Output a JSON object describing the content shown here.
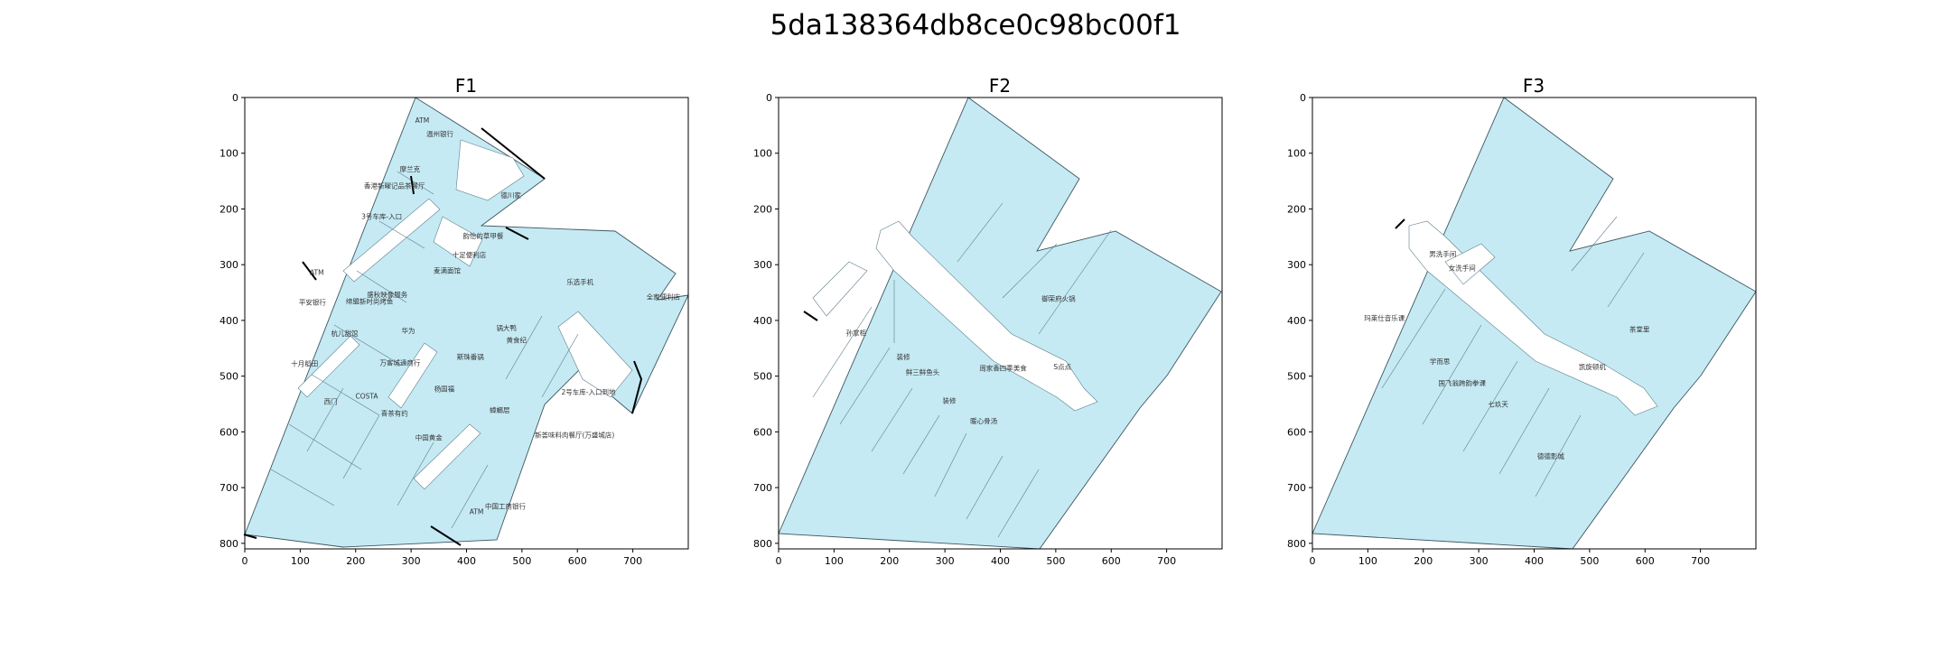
{
  "figure_title": "5da138364db8ce0c98bc00f1",
  "colors": {
    "room_fill": "#c5eaf4",
    "room_edge": "#5d7f8a",
    "corridor": "#ffffff",
    "axis": "#000000"
  },
  "axes": {
    "x_ticks": [
      0,
      100,
      200,
      300,
      400,
      500,
      600,
      700
    ],
    "y_ticks": [
      0,
      100,
      200,
      300,
      400,
      500,
      600,
      700,
      800
    ],
    "xlim": [
      0,
      800
    ],
    "ylim": [
      810,
      0
    ]
  },
  "floors": [
    {
      "title": "F1",
      "labels": [
        {
          "text": "ATM",
          "x": 320,
          "y": 45
        },
        {
          "text": "温州银行",
          "x": 352,
          "y": 70
        },
        {
          "text": "摩兰克",
          "x": 298,
          "y": 133
        },
        {
          "text": "香港新曜记品茶餐厅",
          "x": 270,
          "y": 163
        },
        {
          "text": "德川家",
          "x": 480,
          "y": 180
        },
        {
          "text": "3号车库-入口",
          "x": 247,
          "y": 218
        },
        {
          "text": "韵怡的草甲餐",
          "x": 430,
          "y": 253
        },
        {
          "text": "十足便利店",
          "x": 405,
          "y": 287
        },
        {
          "text": "麦满面馆",
          "x": 365,
          "y": 315
        },
        {
          "text": "ATM",
          "x": 130,
          "y": 318
        },
        {
          "text": "乐选手机",
          "x": 605,
          "y": 335
        },
        {
          "text": "盛秋映像服务",
          "x": 257,
          "y": 358
        },
        {
          "text": "全家便利店",
          "x": 755,
          "y": 362
        },
        {
          "text": "平安银行",
          "x": 122,
          "y": 372
        },
        {
          "text": "缔盟新时尚烤鱼",
          "x": 225,
          "y": 370
        },
        {
          "text": "锅大鸭",
          "x": 472,
          "y": 418
        },
        {
          "text": "华为",
          "x": 295,
          "y": 423
        },
        {
          "text": "黄食纪",
          "x": 490,
          "y": 440
        },
        {
          "text": "杭儿甜馆",
          "x": 180,
          "y": 428
        },
        {
          "text": "斯珠番锅",
          "x": 407,
          "y": 470
        },
        {
          "text": "万客城通商行",
          "x": 280,
          "y": 480
        },
        {
          "text": "十月稻田",
          "x": 108,
          "y": 482
        },
        {
          "text": "杨国福",
          "x": 360,
          "y": 527
        },
        {
          "text": "2号车库-入口到地",
          "x": 620,
          "y": 533
        },
        {
          "text": "COSTA",
          "x": 220,
          "y": 540
        },
        {
          "text": "西门",
          "x": 155,
          "y": 550
        },
        {
          "text": "蟑螂层",
          "x": 460,
          "y": 565
        },
        {
          "text": "喜茶有约",
          "x": 270,
          "y": 571
        },
        {
          "text": "新荟味料肉餐厅(万盛城店)",
          "x": 595,
          "y": 610
        },
        {
          "text": "中国黄金",
          "x": 332,
          "y": 615
        },
        {
          "text": "中国工商银行",
          "x": 470,
          "y": 738
        },
        {
          "text": "ATM",
          "x": 418,
          "y": 748
        }
      ]
    },
    {
      "title": "F2",
      "labels": [
        {
          "text": "御荣府火锅",
          "x": 505,
          "y": 365
        },
        {
          "text": "孙掌柜",
          "x": 140,
          "y": 427
        },
        {
          "text": "装修",
          "x": 225,
          "y": 470
        },
        {
          "text": "鲜三鲜鱼头",
          "x": 260,
          "y": 497
        },
        {
          "text": "周家香四季美食",
          "x": 405,
          "y": 490
        },
        {
          "text": "S点点",
          "x": 512,
          "y": 488
        },
        {
          "text": "装修",
          "x": 308,
          "y": 548
        },
        {
          "text": "暖心骨汤",
          "x": 370,
          "y": 585
        }
      ]
    },
    {
      "title": "F3",
      "labels": [
        {
          "text": "男洗手间",
          "x": 235,
          "y": 285
        },
        {
          "text": "女洗手间",
          "x": 270,
          "y": 310
        },
        {
          "text": "玛莱仕音乐课",
          "x": 130,
          "y": 400
        },
        {
          "text": "茶堂里",
          "x": 590,
          "y": 420
        },
        {
          "text": "学而思",
          "x": 230,
          "y": 478
        },
        {
          "text": "凯旋顿机",
          "x": 505,
          "y": 488
        },
        {
          "text": "国飞翁跨韵拳课",
          "x": 270,
          "y": 517
        },
        {
          "text": "七玖天",
          "x": 335,
          "y": 555
        },
        {
          "text": "德德影城",
          "x": 430,
          "y": 648
        }
      ]
    }
  ]
}
